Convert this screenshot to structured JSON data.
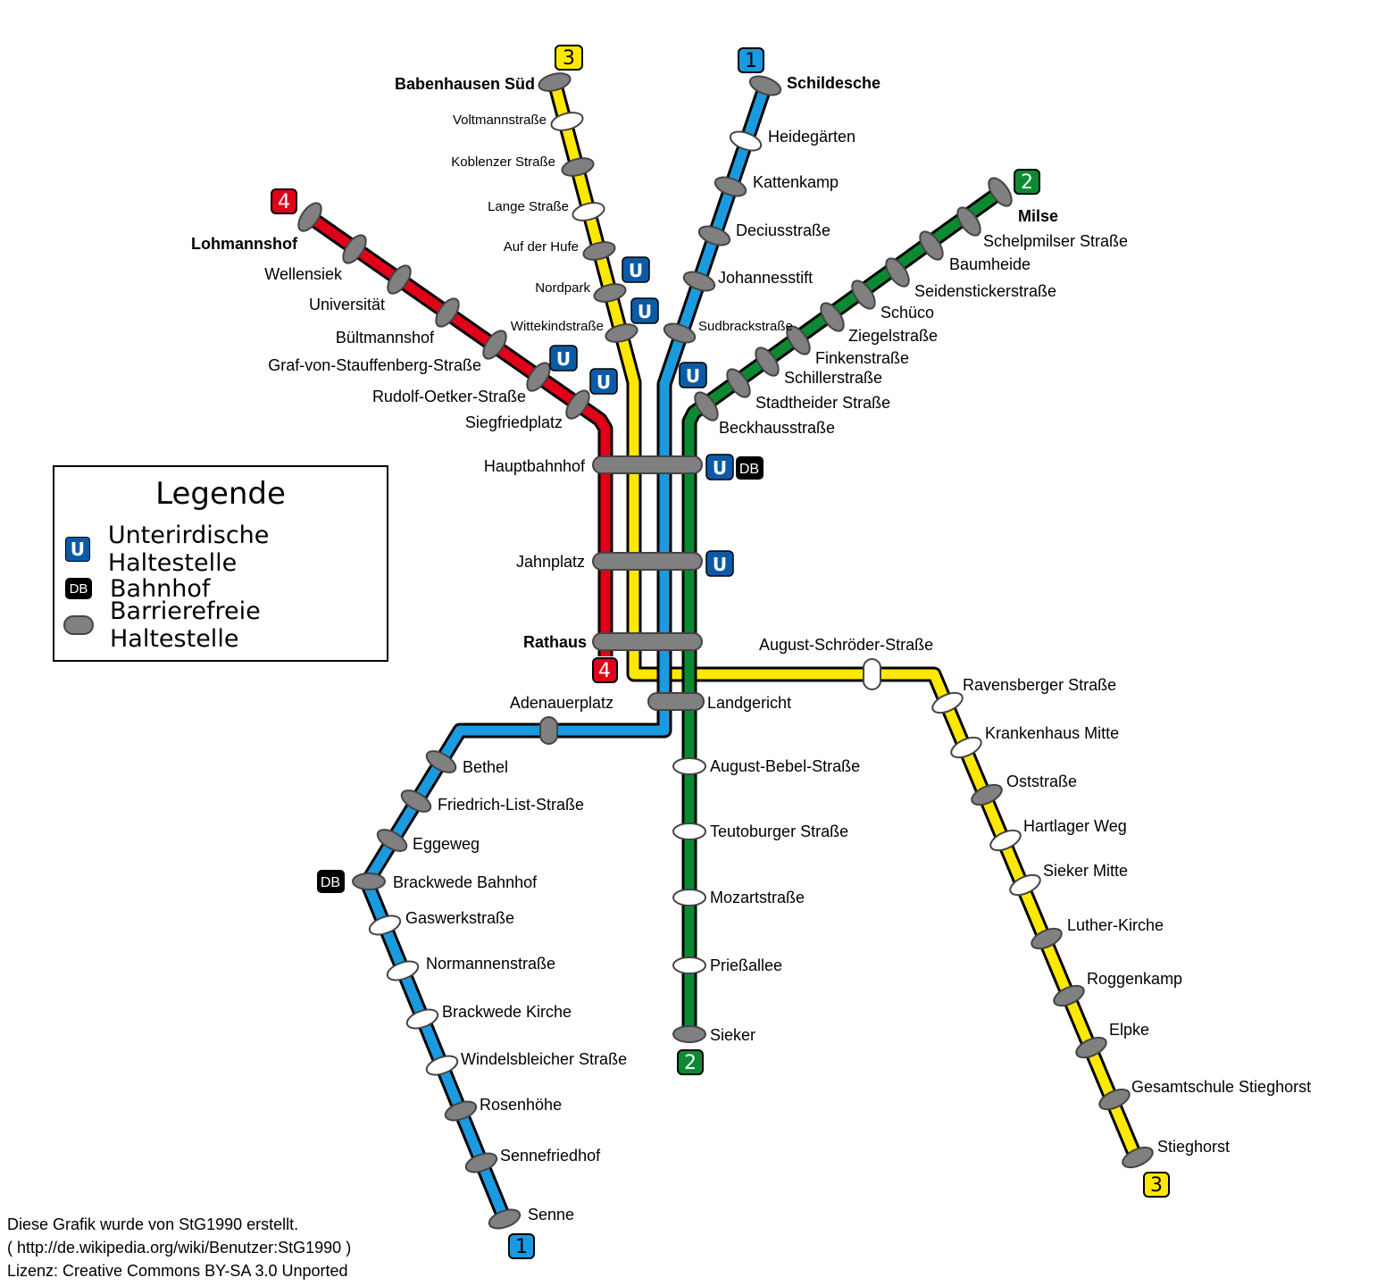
{
  "legend": {
    "title": "Legende",
    "items": [
      {
        "symbol": "U",
        "label": "Unterirdische Haltestelle"
      },
      {
        "symbol": "DB",
        "label": "Bahnhof"
      },
      {
        "symbol": "barrier-free-stop",
        "label": "Barrierefreie Haltestelle"
      }
    ]
  },
  "symbols": {
    "u": "U",
    "db": "DB"
  },
  "line_numbers": {
    "l1": "1",
    "l2": "2",
    "l3": "3",
    "l4": "4"
  },
  "colors": {
    "line1": "#1a9be0",
    "line2": "#0c8a32",
    "line3": "#ffe800",
    "line4": "#e0001a",
    "stop_barrier_free": "#808080",
    "stop_regular": "#ffffff",
    "u_badge": "#0b5aa6"
  },
  "stations": {
    "trunk": [
      "Hauptbahnhof",
      "Jahnplatz",
      "Rathaus"
    ],
    "line1_north": [
      "Schildesche",
      "Heidegärten",
      "Kattenkamp",
      "Deciusstraße",
      "Johannesstift",
      "Sudbrackstraße"
    ],
    "line1_south": [
      "Landgericht",
      "Adenauerplatz",
      "Bethel",
      "Friedrich-List-Straße",
      "Eggeweg",
      "Brackwede Bahnhof",
      "Gaswerkstraße",
      "Normannenstraße",
      "Brackwede Kirche",
      "Windelsbleicher Straße",
      "Rosenhöhe",
      "Sennefriedhof",
      "Senne"
    ],
    "line2_north": [
      "Milse",
      "Schelpmilser Straße",
      "Baumheide",
      "Seidenstickerstraße",
      "Schüco",
      "Ziegelstraße",
      "Finkenstraße",
      "Schillerstraße",
      "Stadtheider Straße",
      "Beckhausstraße"
    ],
    "line2_south": [
      "August-Bebel-Straße",
      "Teutoburger Straße",
      "Mozartstraße",
      "Prießallee",
      "Sieker"
    ],
    "line3_north": [
      "Babenhausen Süd",
      "Voltmannstraße",
      "Koblenzer Straße",
      "Lange Straße",
      "Auf der Hufe",
      "Nordpark",
      "Wittekindstraße"
    ],
    "line3_south": [
      "August-Schröder-Straße",
      "Ravensberger Straße",
      "Krankenhaus Mitte",
      "Oststraße",
      "Hartlager Weg",
      "Sieker Mitte",
      "Luther-Kirche",
      "Roggenkamp",
      "Elpke",
      "Gesamtschule Stieghorst",
      "Stieghorst"
    ],
    "line4": [
      "Lohmannshof",
      "Wellensiek",
      "Universität",
      "Bültmannshof",
      "Graf-von-Stauffenberg-Straße",
      "Rudolf-Oetker-Straße",
      "Siegfriedplatz"
    ]
  },
  "credit": {
    "line1": "Diese Grafik wurde von StG1990 erstellt.",
    "line2": "( http://de.wikipedia.org/wiki/Benutzer:StG1990 )",
    "line3": "Lizenz: Creative Commons BY-SA 3.0 Unported"
  }
}
